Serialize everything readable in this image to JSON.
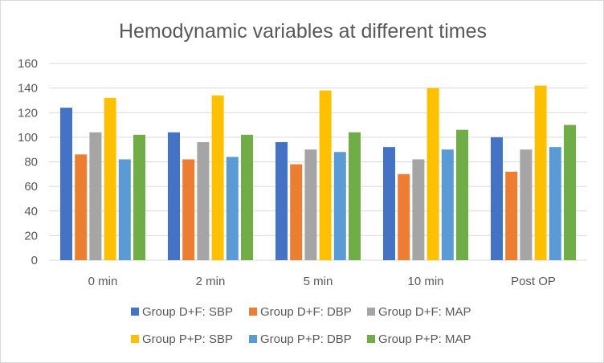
{
  "chart_data": {
    "type": "bar",
    "title": "Hemodynamic variables at different times",
    "xlabel": "",
    "ylabel": "",
    "ylim": [
      0,
      160
    ],
    "yticks": [
      "0",
      "20",
      "40",
      "60",
      "80",
      "100",
      "120",
      "140",
      "160"
    ],
    "grid": true,
    "legend_position": "bottom",
    "categories": [
      "0 min",
      "2 min",
      "5 min",
      "10 min",
      "Post OP"
    ],
    "series": [
      {
        "name": "Group D+F: SBP",
        "color": "#4472c4",
        "values": [
          124,
          104,
          96,
          92,
          100
        ]
      },
      {
        "name": "Group D+F: DBP",
        "color": "#ed7d31",
        "values": [
          86,
          82,
          78,
          70,
          72
        ]
      },
      {
        "name": "Group D+F: MAP",
        "color": "#a5a5a5",
        "values": [
          104,
          96,
          90,
          82,
          90
        ]
      },
      {
        "name": "Group P+P: SBP",
        "color": "#ffc000",
        "values": [
          132,
          134,
          138,
          140,
          142
        ]
      },
      {
        "name": "Group P+P: DBP",
        "color": "#5b9bd5",
        "values": [
          82,
          84,
          88,
          90,
          92
        ]
      },
      {
        "name": "Group P+P: MAP",
        "color": "#70ad47",
        "values": [
          102,
          102,
          104,
          106,
          110
        ]
      }
    ]
  }
}
